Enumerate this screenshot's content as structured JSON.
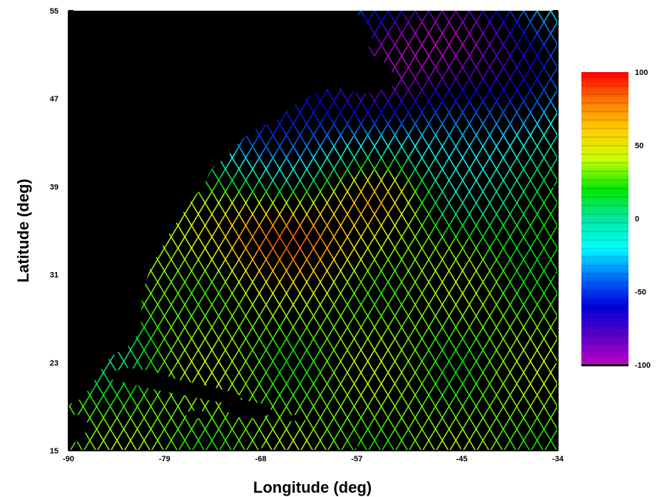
{
  "map": {
    "x_axis": {
      "label": "Longitude (deg)",
      "range": [
        -90,
        -34
      ],
      "ticks": [
        "-90",
        "-79",
        "-68",
        "-57",
        "-45",
        "-34"
      ],
      "tick_values": [
        -90,
        -79,
        -68,
        -57,
        -45,
        -34
      ]
    },
    "y_axis": {
      "label": "Latitude (deg)",
      "range": [
        15,
        55
      ],
      "ticks": [
        "15",
        "23",
        "31",
        "39",
        "47",
        "55"
      ],
      "tick_values": [
        15,
        23,
        31,
        39,
        47,
        55
      ]
    },
    "background_color": "#000000",
    "colorbar": {
      "range": [
        -100,
        100
      ],
      "labels": [
        "100",
        "50",
        "0",
        "-50",
        "-100"
      ],
      "label_values": [
        100,
        50,
        0,
        -50,
        -100
      ],
      "colors_high_to_low": [
        "#ff0000",
        "#ff7a00",
        "#ffd000",
        "#c8ff00",
        "#00e800",
        "#00e6a0",
        "#00ffff",
        "#0070ff",
        "#0000dd",
        "#5a00c8",
        "#c000c8"
      ]
    }
  }
}
